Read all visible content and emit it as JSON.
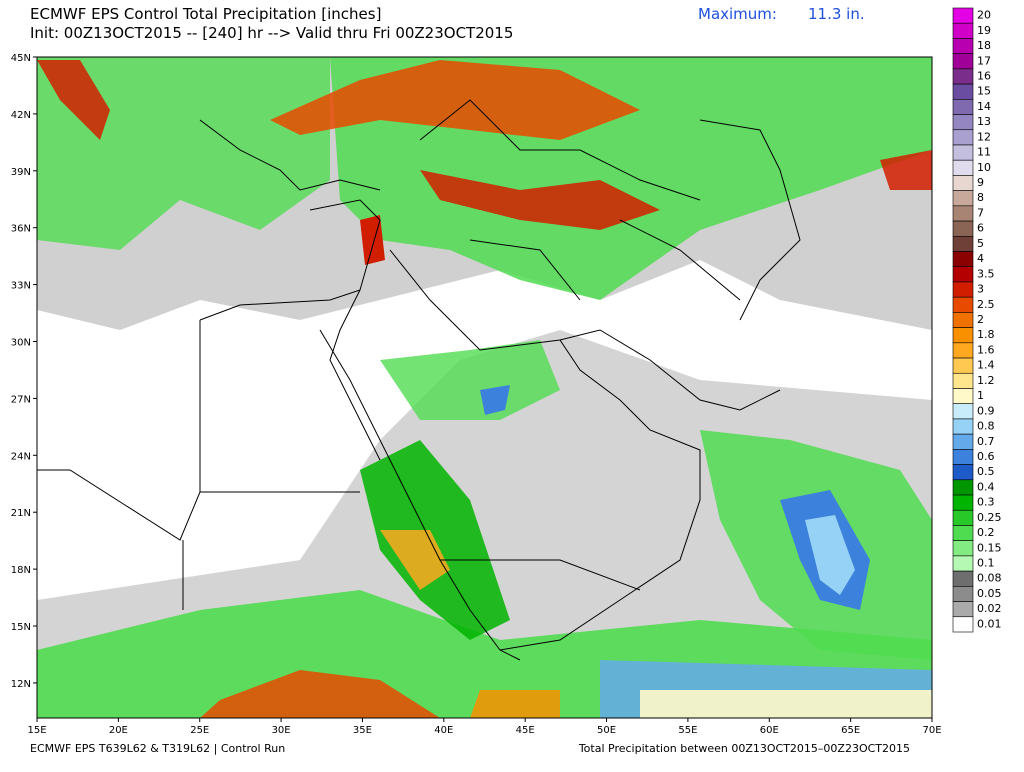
{
  "header": {
    "title": "ECMWF EPS Control Total Precipitation [inches]",
    "subtitle": "Init: 00Z13OCT2015 -- [240] hr --> Valid thru Fri 00Z23OCT2015",
    "maximum_label": "Maximum:",
    "maximum_value": "11.3 in."
  },
  "map": {
    "lon_range": [
      15,
      70
    ],
    "lat_range": [
      10.15,
      45
    ],
    "lon_ticks": [
      {
        "value": 15,
        "label": "15E"
      },
      {
        "value": 20,
        "label": "20E"
      },
      {
        "value": 25,
        "label": "25E"
      },
      {
        "value": 30,
        "label": "30E"
      },
      {
        "value": 35,
        "label": "35E"
      },
      {
        "value": 40,
        "label": "40E"
      },
      {
        "value": 45,
        "label": "45E"
      },
      {
        "value": 50,
        "label": "50E"
      },
      {
        "value": 55,
        "label": "55E"
      },
      {
        "value": 60,
        "label": "60E"
      },
      {
        "value": 65,
        "label": "65E"
      },
      {
        "value": 70,
        "label": "70E"
      }
    ],
    "lat_ticks": [
      {
        "value": 45,
        "label": "45N"
      },
      {
        "value": 42,
        "label": "42N"
      },
      {
        "value": 39,
        "label": "39N"
      },
      {
        "value": 36,
        "label": "36N"
      },
      {
        "value": 33,
        "label": "33N"
      },
      {
        "value": 30,
        "label": "30N"
      },
      {
        "value": 27,
        "label": "27N"
      },
      {
        "value": 24,
        "label": "24N"
      },
      {
        "value": 21,
        "label": "21N"
      },
      {
        "value": 18,
        "label": "18N"
      },
      {
        "value": 15,
        "label": "15N"
      },
      {
        "value": 12,
        "label": "12N"
      }
    ]
  },
  "legend": [
    {
      "label": "20",
      "color": "#e400e4"
    },
    {
      "label": "19",
      "color": "#d000c8"
    },
    {
      "label": "18",
      "color": "#b800b0"
    },
    {
      "label": "17",
      "color": "#a00098"
    },
    {
      "label": "16",
      "color": "#7b2d8b"
    },
    {
      "label": "15",
      "color": "#6a4ca0"
    },
    {
      "label": "14",
      "color": "#7f6ab0"
    },
    {
      "label": "13",
      "color": "#9486c0"
    },
    {
      "label": "12",
      "color": "#aaa0d0"
    },
    {
      "label": "11",
      "color": "#c4bedf"
    },
    {
      "label": "10",
      "color": "#e0dcee"
    },
    {
      "label": "9",
      "color": "#e8d6d0"
    },
    {
      "label": "8",
      "color": "#c8a89a"
    },
    {
      "label": "7",
      "color": "#a88474"
    },
    {
      "label": "6",
      "color": "#8a6454"
    },
    {
      "label": "5",
      "color": "#6e4038"
    },
    {
      "label": "4",
      "color": "#8b0000"
    },
    {
      "label": "3.5",
      "color": "#b40000"
    },
    {
      "label": "3",
      "color": "#d21e00"
    },
    {
      "label": "2.5",
      "color": "#e84a00"
    },
    {
      "label": "2",
      "color": "#f07000"
    },
    {
      "label": "1.8",
      "color": "#f89000"
    },
    {
      "label": "1.6",
      "color": "#ffa820"
    },
    {
      "label": "1.4",
      "color": "#ffc850"
    },
    {
      "label": "1.2",
      "color": "#ffe68c"
    },
    {
      "label": "1",
      "color": "#fff8c8"
    },
    {
      "label": "0.9",
      "color": "#c8ecfa"
    },
    {
      "label": "0.8",
      "color": "#96d2f5"
    },
    {
      "label": "0.7",
      "color": "#64aaeb"
    },
    {
      "label": "0.6",
      "color": "#3c82dc"
    },
    {
      "label": "0.5",
      "color": "#1e5ac8"
    },
    {
      "label": "0.4",
      "color": "#009600"
    },
    {
      "label": "0.3",
      "color": "#00b400"
    },
    {
      "label": "0.25",
      "color": "#28c828"
    },
    {
      "label": "0.2",
      "color": "#50dc50"
    },
    {
      "label": "0.15",
      "color": "#82ec82"
    },
    {
      "label": "0.1",
      "color": "#b4f8b4"
    },
    {
      "label": "0.08",
      "color": "#6e6e6e"
    },
    {
      "label": "0.05",
      "color": "#8c8c8c"
    },
    {
      "label": "0.02",
      "color": "#aaaaaa"
    },
    {
      "label": "0.01",
      "color": "#ffffff"
    }
  ],
  "footer": {
    "left": "ECMWF EPS T639L62 & T319L62 | Control Run",
    "right": "Total Precipitation between 00Z13OCT2015–00Z23OCT2015"
  }
}
